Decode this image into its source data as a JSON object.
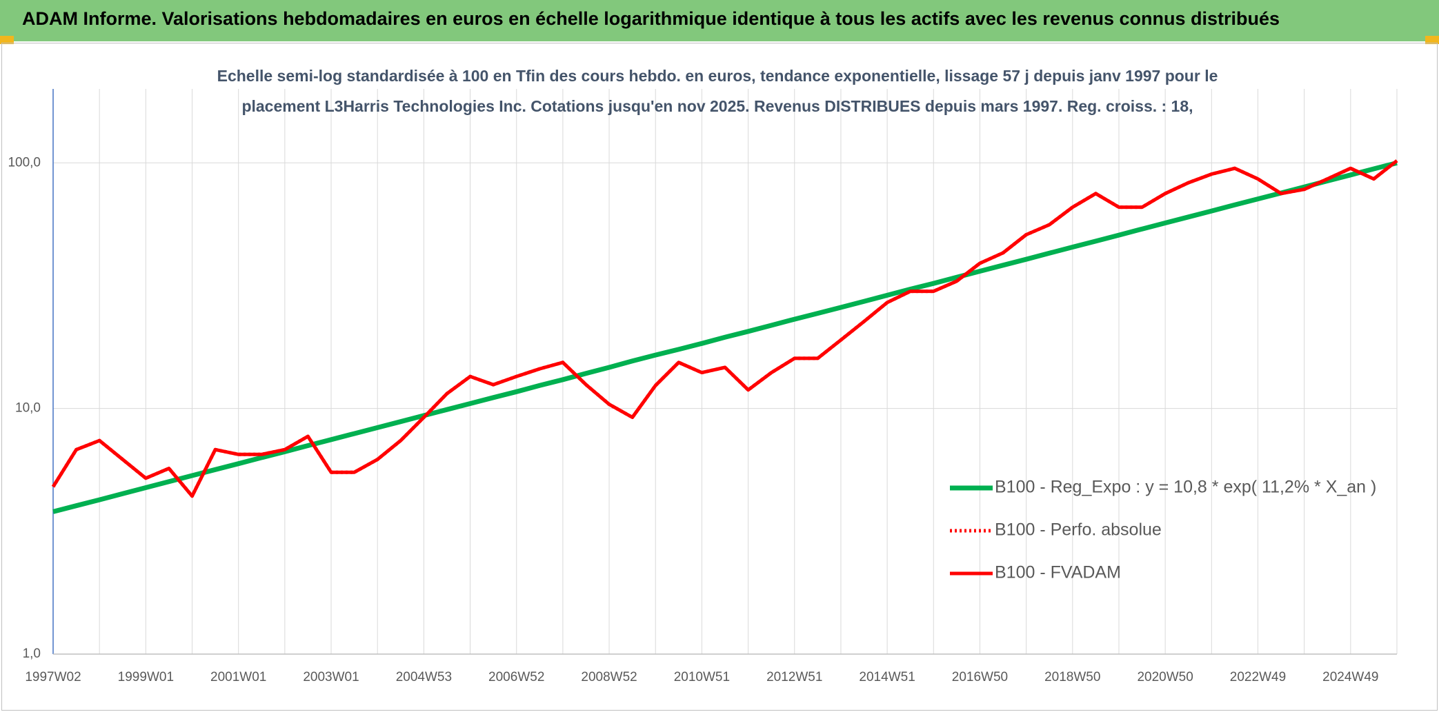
{
  "chart_data": {
    "type": "line",
    "title": "ADAM Informe. Valorisations hebdomadaires en euros en échelle logarithmique identique à tous les actifs avec les revenus connus distribués",
    "subtitle": "Echelle semi-log standardisée à 100 en Tfin des cours hebdo. en euros, tendance exponentielle, lissage 57 j depuis janv 1997 pour le placement L3Harris Technologies Inc. Cotations jusqu'en nov 2025. Revenus DISTRIBUES depuis mars 1997. Reg. croiss. : 18,",
    "categories": [
      "1997W02",
      null,
      null,
      null,
      "1999W01",
      null,
      null,
      null,
      "2001W01",
      null,
      null,
      null,
      "2003W01",
      null,
      null,
      null,
      "2004W53",
      null,
      null,
      null,
      "2006W52",
      null,
      null,
      null,
      "2008W52",
      null,
      null,
      null,
      "2010W51",
      null,
      null,
      null,
      "2012W51",
      null,
      null,
      null,
      "2014W51",
      null,
      null,
      null,
      "2016W50",
      null,
      null,
      null,
      "2018W50",
      null,
      null,
      null,
      "2020W50",
      null,
      null,
      null,
      "2022W49",
      null,
      null,
      null,
      "2024W49",
      null,
      null
    ],
    "series": [
      {
        "name": "B100 - Reg_Expo : y = 10,8 * exp( 11,2% *  X_an )",
        "color": "#00b050",
        "style": "solid",
        "values": [
          3.8,
          4.02,
          4.25,
          4.5,
          4.76,
          5.04,
          5.33,
          5.64,
          5.96,
          6.31,
          6.67,
          7.06,
          7.47,
          7.9,
          8.36,
          8.84,
          9.36,
          9.9,
          10.47,
          11.08,
          11.7,
          12.4,
          13.1,
          13.9,
          14.7,
          15.6,
          16.5,
          17.4,
          18.4,
          19.5,
          20.6,
          21.8,
          23.1,
          24.4,
          25.8,
          27.3,
          28.9,
          30.6,
          32.3,
          34.2,
          36.2,
          38.3,
          40.5,
          42.9,
          45.4,
          48.0,
          50.8,
          53.8,
          56.9,
          60.2,
          63.7,
          67.4,
          71.3,
          75.4,
          79.8,
          84.4,
          89.3,
          94.5,
          99.9
        ]
      },
      {
        "name": "B100 - Perfo. absolue",
        "color": "#ff0000",
        "style": "dotted",
        "values": [
          4.8,
          6.8,
          7.4,
          6.2,
          5.2,
          5.7,
          4.4,
          6.8,
          6.5,
          6.5,
          6.8,
          7.7,
          5.5,
          5.5,
          6.2,
          7.4,
          9.2,
          11.5,
          13.5,
          12.5,
          13.5,
          14.5,
          15.4,
          12.5,
          10.4,
          9.2,
          12.4,
          15.4,
          14,
          14.7,
          11.9,
          14,
          16,
          16,
          19,
          22.6,
          27,
          30,
          30,
          33,
          39,
          43,
          51,
          56,
          66,
          75,
          66,
          66,
          75,
          83,
          90,
          95,
          86,
          75,
          78,
          86,
          95,
          86,
          102
        ]
      },
      {
        "name": "B100 - FVADAM",
        "color": "#ff0000",
        "style": "solid",
        "values": [
          4.8,
          6.8,
          7.4,
          6.2,
          5.2,
          5.7,
          4.4,
          6.8,
          6.5,
          6.5,
          6.8,
          7.7,
          5.5,
          5.5,
          6.2,
          7.4,
          9.2,
          11.5,
          13.5,
          12.5,
          13.5,
          14.5,
          15.4,
          12.5,
          10.4,
          9.2,
          12.4,
          15.4,
          14,
          14.7,
          11.9,
          14,
          16,
          16,
          19,
          22.6,
          27,
          30,
          30,
          33,
          39,
          43,
          51,
          56,
          66,
          75,
          66,
          66,
          75,
          83,
          90,
          95,
          86,
          75,
          78,
          86,
          95,
          86,
          102
        ]
      }
    ],
    "ylim": [
      1,
      200
    ],
    "yticks": [
      {
        "value": 1,
        "label": "1,0"
      },
      {
        "value": 10,
        "label": "10,0"
      },
      {
        "value": 100,
        "label": "100,0"
      }
    ],
    "log_y": true,
    "grid": true,
    "legend": "right"
  }
}
